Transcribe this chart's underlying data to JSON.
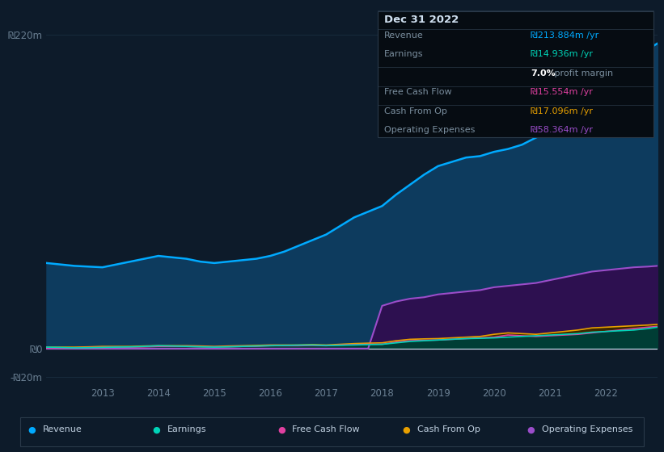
{
  "background_color": "#0d1b2a",
  "chart_bg_color": "#0d1b2a",
  "years": [
    2012.0,
    2012.25,
    2012.5,
    2012.75,
    2013.0,
    2013.25,
    2013.5,
    2013.75,
    2014.0,
    2014.25,
    2014.5,
    2014.75,
    2015.0,
    2015.25,
    2015.5,
    2015.75,
    2016.0,
    2016.25,
    2016.5,
    2016.75,
    2017.0,
    2017.25,
    2017.5,
    2017.75,
    2018.0,
    2018.25,
    2018.5,
    2018.75,
    2019.0,
    2019.25,
    2019.5,
    2019.75,
    2020.0,
    2020.25,
    2020.5,
    2020.75,
    2021.0,
    2021.25,
    2021.5,
    2021.75,
    2022.0,
    2022.25,
    2022.5,
    2022.75,
    2022.92
  ],
  "revenue": [
    60,
    59,
    58,
    57.5,
    57,
    59,
    61,
    63,
    65,
    64,
    63,
    61,
    60,
    61,
    62,
    63,
    65,
    68,
    72,
    76,
    80,
    86,
    92,
    96,
    100,
    108,
    115,
    122,
    128,
    131,
    134,
    135,
    138,
    140,
    143,
    148,
    152,
    157,
    162,
    170,
    178,
    190,
    200,
    210,
    214
  ],
  "earnings": [
    1.0,
    0.8,
    0.5,
    0.6,
    0.8,
    1.0,
    1.2,
    1.5,
    2.0,
    1.8,
    1.5,
    1.2,
    1.0,
    1.2,
    1.5,
    1.8,
    2.0,
    2.2,
    2.4,
    2.5,
    2.2,
    2.3,
    2.5,
    2.8,
    3.0,
    4.0,
    5.0,
    5.5,
    6.0,
    6.5,
    7.0,
    7.2,
    7.5,
    8.0,
    8.5,
    9.0,
    9.5,
    10.0,
    10.5,
    11.5,
    12.0,
    12.5,
    13.0,
    14.0,
    15.0
  ],
  "free_cash_flow": [
    0.5,
    0.5,
    0.6,
    0.7,
    0.8,
    1.0,
    1.0,
    1.2,
    1.5,
    1.5,
    1.5,
    1.3,
    1.2,
    1.3,
    1.5,
    1.6,
    2.0,
    2.0,
    2.0,
    2.2,
    2.0,
    2.5,
    2.8,
    3.0,
    3.0,
    4.5,
    5.5,
    5.8,
    6.0,
    6.5,
    7.0,
    7.5,
    8.0,
    9.5,
    9.0,
    8.5,
    9.0,
    9.5,
    10.0,
    11.0,
    12.0,
    13.0,
    14.0,
    15.0,
    15.5
  ],
  "cash_from_op": [
    1.0,
    1.0,
    1.0,
    1.2,
    1.5,
    1.5,
    1.5,
    1.8,
    2.0,
    2.0,
    2.0,
    1.8,
    1.5,
    1.8,
    2.0,
    2.2,
    2.5,
    2.5,
    2.5,
    2.8,
    2.5,
    3.0,
    3.5,
    3.8,
    4.0,
    5.5,
    6.5,
    6.8,
    7.0,
    7.5,
    8.0,
    8.5,
    10.0,
    11.0,
    10.5,
    10.0,
    11.0,
    12.0,
    13.0,
    14.5,
    15.0,
    15.5,
    16.0,
    16.5,
    17.0
  ],
  "operating_expenses": [
    0,
    0,
    0,
    0,
    0,
    0,
    0,
    0,
    0,
    0,
    0,
    0,
    0,
    0,
    0,
    0,
    0,
    0,
    0,
    0,
    0,
    0,
    0,
    0,
    30,
    33,
    35,
    36,
    38,
    39,
    40,
    41,
    43,
    44,
    45,
    46,
    48,
    50,
    52,
    54,
    55,
    56,
    57,
    57.5,
    58
  ],
  "revenue_color": "#00aaff",
  "revenue_fill": "#0d3b5e",
  "earnings_color": "#00d4b8",
  "earnings_fill": "#003d35",
  "free_cash_flow_color": "#e040a0",
  "free_cash_flow_fill": "#4a1535",
  "cash_from_op_color": "#e8a000",
  "cash_from_op_fill": "#3d2800",
  "operating_expenses_color": "#9b4dca",
  "operating_expenses_fill": "#2d1050",
  "ylim": [
    -25,
    235
  ],
  "yticks": [
    -20,
    0,
    220
  ],
  "ytick_labels": [
    "-₪20m",
    "₪0",
    "₪220m"
  ],
  "xticks": [
    2013,
    2014,
    2015,
    2016,
    2017,
    2018,
    2019,
    2020,
    2021,
    2022
  ],
  "grid_color": "#1a2e3f",
  "text_color": "#6a7f92",
  "zero_line_color": "#ddeeff",
  "info_box": {
    "title": "Dec 31 2022",
    "revenue_label": "Revenue",
    "revenue_value": "₪213.884m /yr",
    "revenue_color": "#00aaff",
    "earnings_label": "Earnings",
    "earnings_value": "₪14.936m /yr",
    "earnings_color": "#00d4b8",
    "margin_label": "7.0%",
    "margin_text": " profit margin",
    "fcf_label": "Free Cash Flow",
    "fcf_value": "₪15.554m /yr",
    "fcf_color": "#e040a0",
    "cashop_label": "Cash From Op",
    "cashop_value": "₪17.096m /yr",
    "cashop_color": "#e8a000",
    "opex_label": "Operating Expenses",
    "opex_value": "₪58.364m /yr",
    "opex_color": "#9b4dca",
    "bg_color": "#060c12",
    "border_color": "#2a3a4a",
    "text_color": "#7a8e9e",
    "title_color": "#d0e0f0"
  },
  "legend": [
    {
      "label": "Revenue",
      "color": "#00aaff"
    },
    {
      "label": "Earnings",
      "color": "#00d4b8"
    },
    {
      "label": "Free Cash Flow",
      "color": "#e040a0"
    },
    {
      "label": "Cash From Op",
      "color": "#e8a000"
    },
    {
      "label": "Operating Expenses",
      "color": "#9b4dca"
    }
  ],
  "legend_bg": "#0d1b2a",
  "legend_border": "#2a3a4a"
}
